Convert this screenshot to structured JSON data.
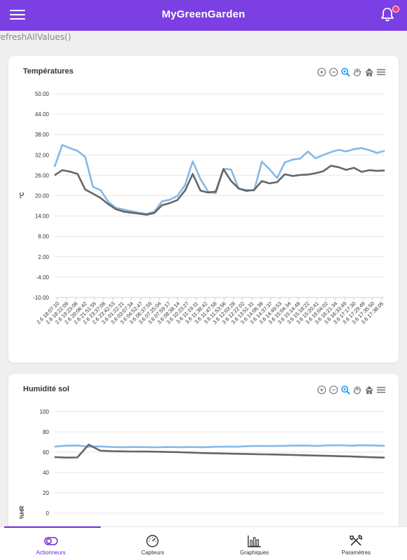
{
  "header": {
    "title": "MyGreenGarden",
    "menu_icon": "hamburger-menu-icon",
    "notif_icon": "bell-icon",
    "bg_color": "#7b3fe4"
  },
  "debug_text": "refreshAllValues()",
  "toolbar_icons": [
    "zoom-in-icon",
    "zoom-out-icon",
    "magnifier-zoom-icon",
    "pan-hand-icon",
    "home-reset-icon",
    "menu-icon"
  ],
  "temperature_card": {
    "title": "Températures"
  },
  "humidity_card": {
    "title": "Humidité sol"
  },
  "nav": {
    "items": [
      {
        "label": "Actionneurs",
        "icon": "toggle-icon"
      },
      {
        "label": "Capteurs",
        "icon": "gauge-icon"
      },
      {
        "label": "Graphiques",
        "icon": "bar-chart-icon"
      },
      {
        "label": "Paramètres",
        "icon": "tools-icon"
      }
    ],
    "active_index": 0,
    "accent": "#6d28d9"
  },
  "chart_data": [
    {
      "type": "line",
      "title": "Températures",
      "ylabel": "°C",
      "xlabel": "",
      "ylim": [
        -10,
        50
      ],
      "y_ticks": [
        "50.00",
        "44.00",
        "38.00",
        "32.00",
        "26.00",
        "20.00",
        "14.00",
        "8.00",
        "2.00",
        "-4.00",
        "-10.00"
      ],
      "x_ticks": [
        "2.6 18:07:10",
        "2.6 18:22:09",
        "2.6 19:23:08",
        "2.6 20:06:42",
        "2.6 21:51:55",
        "2.6 23:37:08",
        "2.6 23:42:53",
        "3.6 01:22:21",
        "3.6 03:07:34",
        "3.6 04:52:47",
        "3.6 06:37:59",
        "3.6 07:25:04",
        "3.6 07:59:17",
        "3.6 08:38:14",
        "3.6 10:23:27",
        "3.6 11:19:11",
        "3.6 11:38:42",
        "3.6 11:47:58",
        "3.6 11:53:56",
        "3.6 12:03:28",
        "3.6 12:22:02",
        "3.6 13:51:31",
        "3.6 14:06:38",
        "3.6 14:37:37",
        "3.6 14:49:53",
        "3.6 15:04:34",
        "3.6 15:14:48",
        "3.6 15:18:22",
        "3.6 15:20:41",
        "3.6 16:04:02",
        "3.6 16:21:34",
        "3.6 16:33:49",
        "3.6 17:17:30",
        "3.6 17:29:49",
        "3.6 17:35:50",
        "3.6 17:38:05"
      ],
      "series": [
        {
          "color": "#85b9e6",
          "values": [
            28.5,
            34.9,
            34.0,
            33.2,
            31.4,
            22.6,
            21.6,
            18.2,
            16.4,
            15.9,
            15.4,
            15.0,
            14.6,
            15.3,
            18.3,
            18.8,
            19.9,
            23.1,
            30.1,
            24.9,
            21.2,
            20.7,
            27.9,
            27.7,
            22.0,
            21.7,
            21.5,
            30.0,
            27.8,
            25.2,
            29.8,
            30.6,
            30.9,
            33.0,
            31.0,
            32.0,
            32.8,
            33.5,
            33.0,
            33.7,
            34.0,
            33.4,
            32.6,
            33.2
          ]
        },
        {
          "color": "#666666",
          "values": [
            26.0,
            27.5,
            27.1,
            26.4,
            21.8,
            20.6,
            19.3,
            17.5,
            16.0,
            15.3,
            15.0,
            14.7,
            14.4,
            14.9,
            17.2,
            17.8,
            18.7,
            21.5,
            26.4,
            21.5,
            20.9,
            21.2,
            27.8,
            24.3,
            22.1,
            21.4,
            21.7,
            24.3,
            23.6,
            24.0,
            26.3,
            25.8,
            26.1,
            26.2,
            26.6,
            27.2,
            28.8,
            28.4,
            27.6,
            28.2,
            27.0,
            27.5,
            27.3,
            27.4
          ]
        }
      ]
    },
    {
      "type": "line",
      "title": "Humidité sol",
      "ylabel": "%HR",
      "xlabel": "",
      "ylim": [
        0,
        100
      ],
      "y_ticks": [
        "100",
        "80",
        "60",
        "40",
        "20",
        "0"
      ],
      "series": [
        {
          "color": "#85b9e6",
          "values": [
            65.5,
            66.4,
            66.6,
            65.4,
            65.7,
            65.2,
            64.9,
            65.1,
            65.0,
            64.8,
            65.1,
            64.9,
            65.2,
            64.9,
            65.3,
            65.5,
            65.4,
            66.0,
            66.2,
            66.1,
            66.3,
            66.5,
            66.6,
            66.2,
            66.7,
            66.9,
            66.4,
            66.8,
            66.7,
            66.3
          ]
        },
        {
          "color": "#666666",
          "values": [
            55.2,
            54.7,
            54.8,
            67.5,
            61.5,
            61.0,
            60.8,
            60.7,
            60.6,
            60.5,
            60.2,
            60.0,
            59.6,
            59.2,
            58.9,
            58.7,
            58.4,
            58.2,
            57.9,
            57.8,
            57.5,
            57.3,
            57.0,
            56.7,
            56.4,
            56.1,
            55.8,
            55.4,
            55.0,
            54.7
          ]
        }
      ]
    }
  ]
}
